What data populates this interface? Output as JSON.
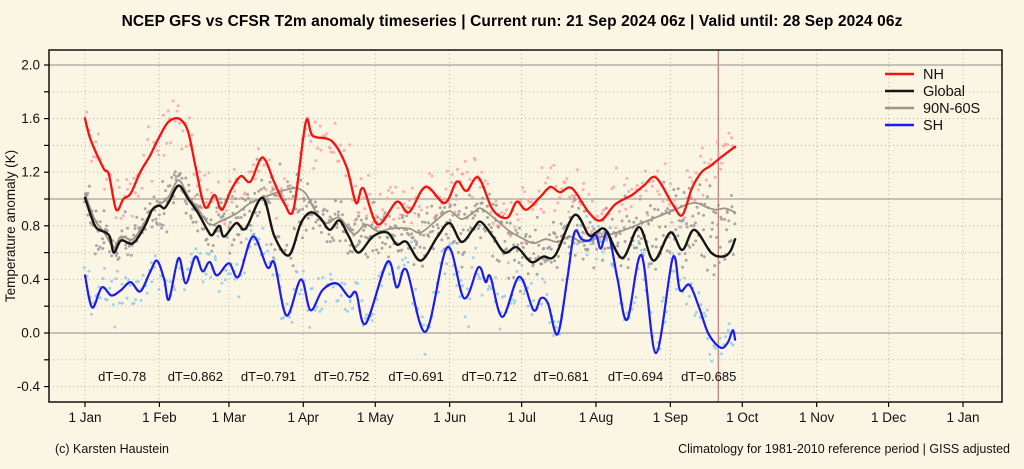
{
  "title": "NCEP GFS vs CFSR T2m anomaly timeseries | Current run: 21 Sep 2024 06z | Valid until: 28 Sep 2024 06z",
  "footer": {
    "left": "(c) Karsten Haustein",
    "right": "Climatology for 1981-2010 reference period | GISS adjusted"
  },
  "colors": {
    "background": "#fbf5e3",
    "plot_border": "#000000",
    "grid_dotted": "#b9b4a6",
    "grid_solid": "#8d8d8d",
    "current_run_line": "#cc7f7f",
    "text": "#111111"
  },
  "chart_data": {
    "type": "line",
    "title": "NCEP GFS vs CFSR T2m anomaly timeseries | Current run: 21 Sep 2024 06z | Valid until: 28 Sep 2024 06z",
    "xlabel": "",
    "ylabel": "Temperature anomaly (K)",
    "ylim": [
      -0.52,
      2.11
    ],
    "ytick_label_values": [
      -0.4,
      0.0,
      0.4,
      0.8,
      1.2,
      1.6,
      2.0
    ],
    "ytick_minor_step": 0.2,
    "solid_hlines": [
      0.0,
      1.0,
      2.0
    ],
    "grid": "dotted, every 0.2 K and every month start",
    "legend_position": "top-right",
    "x_ticks": [
      {
        "label": "1 Jan",
        "day": 1
      },
      {
        "label": "1 Feb",
        "day": 32
      },
      {
        "label": "1 Mar",
        "day": 61
      },
      {
        "label": "1 Apr",
        "day": 92
      },
      {
        "label": "1 May",
        "day": 122
      },
      {
        "label": "1 Jun",
        "day": 153
      },
      {
        "label": "1 Jul",
        "day": 183
      },
      {
        "label": "1 Aug",
        "day": 214
      },
      {
        "label": "1 Sep",
        "day": 245
      },
      {
        "label": "1 Oct",
        "day": 275
      },
      {
        "label": "1 Nov",
        "day": 306
      },
      {
        "label": "1 Dec",
        "day": 336
      },
      {
        "label": "1 Jan",
        "day": 367
      }
    ],
    "current_run_day": 265,
    "data_end_day": 272,
    "legend": [
      {
        "label": "NH"
      },
      {
        "label": "Global"
      },
      {
        "label": "90N-60S"
      },
      {
        "label": "SH"
      }
    ],
    "annotations": [
      {
        "label": "dT=0.78",
        "day": 16.5,
        "value_y": -0.36
      },
      {
        "label": "dT=0.862",
        "day": 47,
        "value_y": -0.36
      },
      {
        "label": "dT=0.791",
        "day": 77.5,
        "value_y": -0.36
      },
      {
        "label": "dT=0.752",
        "day": 108,
        "value_y": -0.36
      },
      {
        "label": "dT=0.691",
        "day": 139,
        "value_y": -0.36
      },
      {
        "label": "dT=0.712",
        "day": 169.5,
        "value_y": -0.36
      },
      {
        "label": "dT=0.681",
        "day": 199.5,
        "value_y": -0.36
      },
      {
        "label": "dT=0.694",
        "day": 230.5,
        "value_y": -0.36
      },
      {
        "label": "dT=0.685",
        "day": 261,
        "value_y": -0.36
      }
    ],
    "series": [
      {
        "name": "NH",
        "color": "#f51310",
        "width": 2.3,
        "scatter_color": "#ffa1a8",
        "scatter_amp": 0.17,
        "scatter_seed": 11,
        "points": [
          [
            1,
            1.6
          ],
          [
            3,
            1.46
          ],
          [
            6,
            1.33
          ],
          [
            9,
            1.22
          ],
          [
            11,
            1.18
          ],
          [
            14,
            0.92
          ],
          [
            17,
            1.0
          ],
          [
            20,
            1.04
          ],
          [
            24,
            1.2
          ],
          [
            28,
            1.32
          ],
          [
            31,
            1.43
          ],
          [
            35,
            1.56
          ],
          [
            38,
            1.6
          ],
          [
            41,
            1.59
          ],
          [
            44,
            1.5
          ],
          [
            47,
            1.25
          ],
          [
            51,
            0.94
          ],
          [
            55,
            1.03
          ],
          [
            58,
            0.92
          ],
          [
            62,
            1.07
          ],
          [
            66,
            1.17
          ],
          [
            70,
            1.13
          ],
          [
            75,
            1.31
          ],
          [
            80,
            1.12
          ],
          [
            84,
            0.97
          ],
          [
            88,
            0.93
          ],
          [
            93,
            1.57
          ],
          [
            96,
            1.47
          ],
          [
            104,
            1.43
          ],
          [
            110,
            1.24
          ],
          [
            114,
            0.97
          ],
          [
            117,
            1.08
          ],
          [
            123,
            0.81
          ],
          [
            131,
            0.98
          ],
          [
            136,
            0.9
          ],
          [
            143,
            1.09
          ],
          [
            151,
            0.97
          ],
          [
            156,
            1.13
          ],
          [
            160,
            1.06
          ],
          [
            165,
            1.16
          ],
          [
            171,
            0.92
          ],
          [
            177,
            0.86
          ],
          [
            181,
            0.98
          ],
          [
            185,
            0.92
          ],
          [
            191,
            1.02
          ],
          [
            195,
            1.09
          ],
          [
            199,
            1.05
          ],
          [
            204,
            1.08
          ],
          [
            211,
            0.9
          ],
          [
            216,
            0.84
          ],
          [
            222,
            0.96
          ],
          [
            229,
            1.03
          ],
          [
            234,
            1.1
          ],
          [
            239,
            1.16
          ],
          [
            246,
            0.96
          ],
          [
            250,
            0.88
          ],
          [
            254,
            1.08
          ],
          [
            258,
            1.2
          ],
          [
            262,
            1.25
          ],
          [
            266,
            1.31
          ],
          [
            269,
            1.35
          ],
          [
            272,
            1.39
          ]
        ]
      },
      {
        "name": "Global",
        "color": "#151515",
        "width": 2.4,
        "scatter_color": "#9a9a9a",
        "scatter_amp": 0.15,
        "scatter_seed": 22,
        "points": [
          [
            1,
            1.01
          ],
          [
            4,
            0.85
          ],
          [
            6,
            0.78
          ],
          [
            11,
            0.73
          ],
          [
            13,
            0.6
          ],
          [
            16,
            0.69
          ],
          [
            21,
            0.67
          ],
          [
            26,
            0.8
          ],
          [
            29,
            0.92
          ],
          [
            32,
            0.95
          ],
          [
            34,
            0.93
          ],
          [
            36,
            0.98
          ],
          [
            40,
            1.1
          ],
          [
            44,
            1.0
          ],
          [
            48,
            0.9
          ],
          [
            52,
            0.77
          ],
          [
            54,
            0.73
          ],
          [
            57,
            0.8
          ],
          [
            59,
            0.72
          ],
          [
            64,
            0.82
          ],
          [
            68,
            0.78
          ],
          [
            75,
            1.01
          ],
          [
            80,
            0.72
          ],
          [
            86,
            0.58
          ],
          [
            91,
            0.82
          ],
          [
            95,
            0.9
          ],
          [
            99,
            0.86
          ],
          [
            103,
            0.77
          ],
          [
            107,
            0.84
          ],
          [
            111,
            0.72
          ],
          [
            115,
            0.6
          ],
          [
            121,
            0.72
          ],
          [
            127,
            0.75
          ],
          [
            131,
            0.66
          ],
          [
            135,
            0.68
          ],
          [
            141,
            0.54
          ],
          [
            148,
            0.72
          ],
          [
            153,
            0.82
          ],
          [
            158,
            0.68
          ],
          [
            163,
            0.78
          ],
          [
            166,
            0.83
          ],
          [
            171,
            0.72
          ],
          [
            176,
            0.6
          ],
          [
            181,
            0.64
          ],
          [
            187,
            0.53
          ],
          [
            192,
            0.57
          ],
          [
            197,
            0.58
          ],
          [
            205,
            0.88
          ],
          [
            211,
            0.73
          ],
          [
            214,
            0.75
          ],
          [
            218,
            0.77
          ],
          [
            225,
            0.56
          ],
          [
            232,
            0.79
          ],
          [
            238,
            0.54
          ],
          [
            245,
            0.75
          ],
          [
            250,
            0.62
          ],
          [
            255,
            0.77
          ],
          [
            262,
            0.6
          ],
          [
            267,
            0.57
          ],
          [
            270,
            0.61
          ],
          [
            272,
            0.7
          ]
        ]
      },
      {
        "name": "90N-60S",
        "color": "#a29384",
        "width": 1.8,
        "scatter_color": "#9a9a9a",
        "scatter_amp": 0.13,
        "scatter_seed": 44,
        "points": [
          [
            1,
            1.04
          ],
          [
            5,
            0.85
          ],
          [
            9,
            0.75
          ],
          [
            13,
            0.64
          ],
          [
            16,
            0.72
          ],
          [
            21,
            0.7
          ],
          [
            26,
            0.83
          ],
          [
            30,
            0.94
          ],
          [
            33,
            0.97
          ],
          [
            36,
            1.02
          ],
          [
            40,
            1.14
          ],
          [
            44,
            1.02
          ],
          [
            48,
            0.93
          ],
          [
            53,
            0.81
          ],
          [
            58,
            0.84
          ],
          [
            64,
            0.89
          ],
          [
            70,
            0.97
          ],
          [
            78,
            1.03
          ],
          [
            85,
            1.07
          ],
          [
            89,
            1.08
          ],
          [
            93,
            1.04
          ],
          [
            98,
            0.88
          ],
          [
            102,
            0.82
          ],
          [
            107,
            0.86
          ],
          [
            113,
            0.74
          ],
          [
            118,
            0.81
          ],
          [
            123,
            0.76
          ],
          [
            129,
            0.78
          ],
          [
            136,
            0.78
          ],
          [
            141,
            0.75
          ],
          [
            148,
            0.85
          ],
          [
            153,
            0.91
          ],
          [
            158,
            0.85
          ],
          [
            163,
            0.9
          ],
          [
            166,
            0.93
          ],
          [
            172,
            0.85
          ],
          [
            178,
            0.76
          ],
          [
            183,
            0.71
          ],
          [
            188,
            0.67
          ],
          [
            193,
            0.7
          ],
          [
            198,
            0.68
          ],
          [
            203,
            0.72
          ],
          [
            208,
            0.68
          ],
          [
            213,
            0.7
          ],
          [
            219,
            0.73
          ],
          [
            226,
            0.77
          ],
          [
            233,
            0.82
          ],
          [
            240,
            0.87
          ],
          [
            247,
            0.92
          ],
          [
            252,
            0.96
          ],
          [
            256,
            0.97
          ],
          [
            260,
            0.94
          ],
          [
            264,
            0.92
          ],
          [
            268,
            0.93
          ],
          [
            272,
            0.9
          ]
        ]
      },
      {
        "name": "SH",
        "color": "#1c1cf0",
        "width": 2.2,
        "scatter_color": "#8fcbeb",
        "scatter_amp": 0.13,
        "scatter_seed": 33,
        "points": [
          [
            1,
            0.43
          ],
          [
            4,
            0.19
          ],
          [
            8,
            0.34
          ],
          [
            12,
            0.28
          ],
          [
            16,
            0.32
          ],
          [
            20,
            0.38
          ],
          [
            24,
            0.31
          ],
          [
            28,
            0.45
          ],
          [
            31,
            0.54
          ],
          [
            34,
            0.4
          ],
          [
            36,
            0.25
          ],
          [
            40,
            0.56
          ],
          [
            43,
            0.37
          ],
          [
            47,
            0.57
          ],
          [
            50,
            0.46
          ],
          [
            53,
            0.53
          ],
          [
            56,
            0.43
          ],
          [
            61,
            0.52
          ],
          [
            65,
            0.42
          ],
          [
            71,
            0.72
          ],
          [
            77,
            0.49
          ],
          [
            80,
            0.52
          ],
          [
            85,
            0.13
          ],
          [
            91,
            0.4
          ],
          [
            95,
            0.17
          ],
          [
            100,
            0.32
          ],
          [
            106,
            0.37
          ],
          [
            111,
            0.27
          ],
          [
            114,
            0.3
          ],
          [
            118,
            0.07
          ],
          [
            127,
            0.53
          ],
          [
            131,
            0.34
          ],
          [
            135,
            0.47
          ],
          [
            143,
            0.01
          ],
          [
            152,
            0.64
          ],
          [
            159,
            0.26
          ],
          [
            165,
            0.49
          ],
          [
            168,
            0.38
          ],
          [
            170,
            0.42
          ],
          [
            175,
            0.12
          ],
          [
            182,
            0.42
          ],
          [
            188,
            0.17
          ],
          [
            191,
            0.26
          ],
          [
            194,
            0.22
          ],
          [
            198,
            -0.01
          ],
          [
            202,
            0.4
          ],
          [
            205,
            0.75
          ],
          [
            208,
            0.7
          ],
          [
            211,
            0.69
          ],
          [
            214,
            0.73
          ],
          [
            216,
            0.63
          ],
          [
            219,
            0.75
          ],
          [
            223,
            0.4
          ],
          [
            227,
            0.1
          ],
          [
            233,
            0.58
          ],
          [
            239,
            -0.15
          ],
          [
            246,
            0.56
          ],
          [
            249,
            0.32
          ],
          [
            253,
            0.36
          ],
          [
            257,
            0.19
          ],
          [
            261,
            -0.01
          ],
          [
            266,
            -0.11
          ],
          [
            269,
            -0.07
          ],
          [
            271,
            0.02
          ],
          [
            272,
            -0.05
          ]
        ]
      }
    ]
  }
}
